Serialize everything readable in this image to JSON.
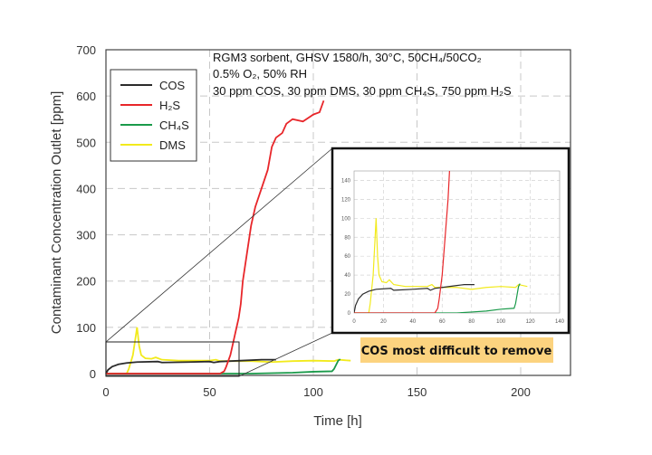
{
  "chart_data": {
    "type": "line",
    "xlabel": "Time [h]",
    "ylabel": "Contaminant Concentration Outlet [ppm]",
    "xlim": [
      0,
      225
    ],
    "ylim": [
      0,
      700
    ],
    "xticks": [
      0,
      50,
      100,
      150,
      200
    ],
    "yticks": [
      0,
      100,
      200,
      300,
      400,
      500,
      600,
      700
    ],
    "grid": true,
    "legend_position": "top-left",
    "annotations": [
      "RGM3 sorbent, GHSV 1580/h, 30°C, 50CH₄/50CO₂",
      "0.5% O₂, 50% RH",
      "30 ppm COS, 30 ppm DMS, 30 ppm CH₄S, 750 ppm H₂S"
    ],
    "callout": "COS most difficult to remove",
    "inset": {
      "xlim": [
        0,
        140
      ],
      "ylim": [
        0,
        150
      ],
      "xticks": [
        0,
        20,
        40,
        60,
        80,
        100,
        120,
        140
      ],
      "yticks": [
        0,
        20,
        40,
        60,
        80,
        100,
        120,
        140
      ],
      "zoom_region": {
        "x": [
          0,
          65
        ],
        "y": [
          0,
          70
        ]
      }
    },
    "series": [
      {
        "name": "COS",
        "color": "#2b2b2b",
        "points": [
          [
            0,
            0
          ],
          [
            1,
            8
          ],
          [
            3,
            15
          ],
          [
            6,
            20
          ],
          [
            10,
            23
          ],
          [
            15,
            25
          ],
          [
            25,
            26
          ],
          [
            27,
            24
          ],
          [
            40,
            25
          ],
          [
            50,
            26
          ],
          [
            52,
            24
          ],
          [
            55,
            26
          ],
          [
            60,
            27
          ],
          [
            70,
            29
          ],
          [
            75,
            30
          ],
          [
            82,
            30
          ]
        ]
      },
      {
        "name": "H₂S",
        "color": "#e8262a",
        "points": [
          [
            0,
            0
          ],
          [
            55,
            0
          ],
          [
            57,
            5
          ],
          [
            58,
            15
          ],
          [
            60,
            40
          ],
          [
            62,
            80
          ],
          [
            64,
            120
          ],
          [
            65,
            150
          ],
          [
            66,
            200
          ],
          [
            68,
            260
          ],
          [
            70,
            320
          ],
          [
            72,
            360
          ],
          [
            75,
            400
          ],
          [
            78,
            440
          ],
          [
            80,
            490
          ],
          [
            82,
            510
          ],
          [
            85,
            520
          ],
          [
            87,
            540
          ],
          [
            90,
            550
          ],
          [
            95,
            545
          ],
          [
            100,
            560
          ],
          [
            103,
            565
          ],
          [
            105,
            590
          ]
        ]
      },
      {
        "name": "CH₄S",
        "color": "#1a9a4a",
        "points": [
          [
            0,
            0
          ],
          [
            55,
            0
          ],
          [
            70,
            0
          ],
          [
            80,
            1
          ],
          [
            90,
            2
          ],
          [
            100,
            4
          ],
          [
            109,
            5
          ],
          [
            110,
            10
          ],
          [
            112,
            28
          ],
          [
            113,
            31
          ]
        ]
      },
      {
        "name": "DMS",
        "color": "#f2ea1c",
        "points": [
          [
            0,
            0
          ],
          [
            10,
            0
          ],
          [
            11,
            10
          ],
          [
            13,
            40
          ],
          [
            15,
            100
          ],
          [
            16,
            60
          ],
          [
            17,
            40
          ],
          [
            19,
            33
          ],
          [
            22,
            32
          ],
          [
            24,
            35
          ],
          [
            27,
            30
          ],
          [
            35,
            28
          ],
          [
            50,
            28
          ],
          [
            53,
            30
          ],
          [
            55,
            27
          ],
          [
            70,
            27
          ],
          [
            80,
            25
          ],
          [
            90,
            27
          ],
          [
            100,
            28
          ],
          [
            110,
            27
          ],
          [
            112,
            30
          ],
          [
            118,
            28
          ]
        ]
      }
    ]
  },
  "colors": {
    "callout_bg": "#fcd37f",
    "grid": "#c8c8c8"
  }
}
